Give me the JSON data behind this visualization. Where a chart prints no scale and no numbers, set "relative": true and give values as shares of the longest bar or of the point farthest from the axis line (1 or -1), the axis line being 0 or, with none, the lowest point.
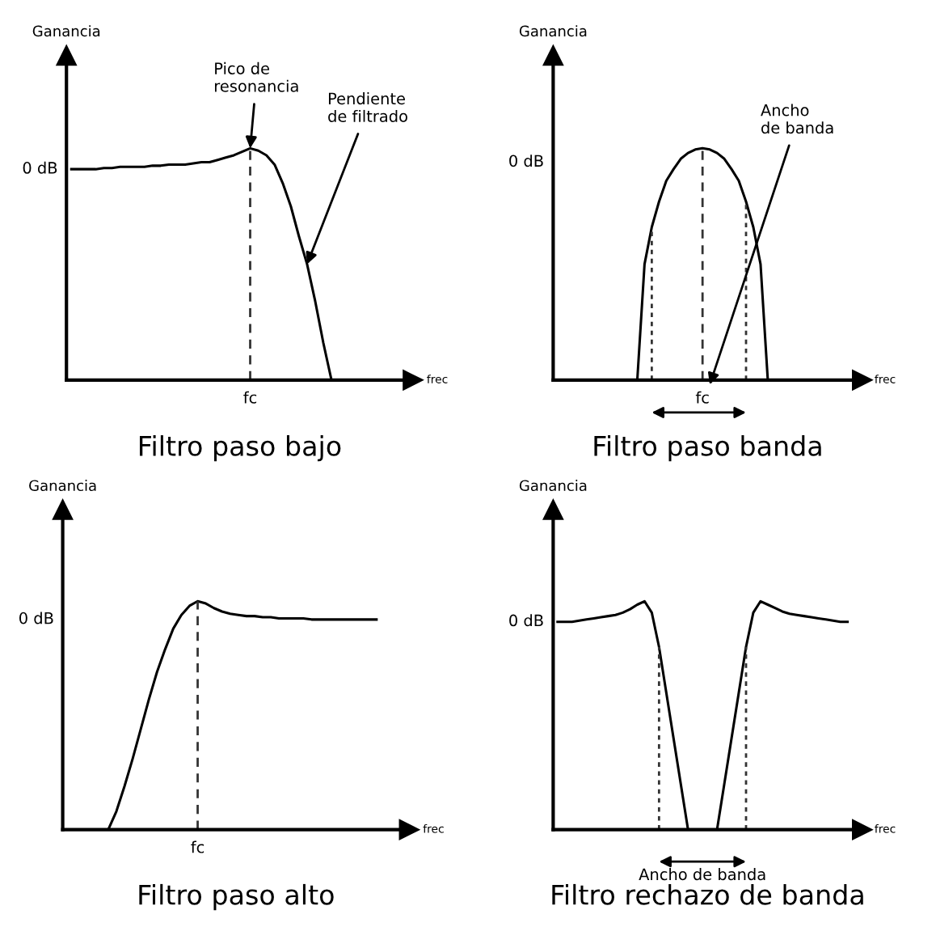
{
  "chart_data": [
    {
      "type": "line",
      "title": "Filtro paso bajo",
      "xlabel": "frec",
      "ylabel": "Ganancia",
      "relative": true,
      "categories": [
        null,
        null,
        null,
        null,
        null,
        null,
        null,
        null,
        null,
        null,
        null,
        null,
        null,
        null,
        null,
        null,
        null,
        null,
        null,
        null,
        null,
        null,
        null,
        null,
        null,
        null,
        null,
        null,
        null,
        null,
        null,
        null,
        null,
        null,
        null,
        null,
        null,
        null,
        null,
        null,
        null
      ],
      "series": [
        {
          "color": "#000000",
          "values": [
            0.91,
            0.91,
            0.91,
            0.91,
            0.915,
            0.915,
            0.92,
            0.92,
            0.92,
            0.92,
            0.925,
            0.925,
            0.93,
            0.93,
            0.93,
            0.935,
            0.94,
            0.94,
            0.95,
            0.96,
            0.97,
            0.985,
            1,
            0.99,
            0.97,
            0.93,
            0.85,
            0.75,
            0.62,
            0.5,
            0.34,
            0.16,
            0,
            0,
            0,
            0,
            0,
            0,
            0,
            0,
            0
          ]
        }
      ],
      "annotations": [
        "0 dB",
        "fc",
        "Pico de\nresonancia",
        "Pendiente\nde filtrado"
      ]
    },
    {
      "type": "line",
      "title": "Filtro paso banda",
      "xlabel": "frec",
      "ylabel": "Ganancia",
      "relative": true,
      "categories": [
        null,
        null,
        null,
        null,
        null,
        null,
        null,
        null,
        null,
        null,
        null,
        null,
        null,
        null,
        null,
        null,
        null,
        null,
        null,
        null,
        null,
        null,
        null,
        null,
        null,
        null,
        null,
        null,
        null,
        null,
        null,
        null,
        null,
        null,
        null,
        null,
        null,
        null,
        null,
        null,
        null
      ],
      "series": [
        {
          "color": "#000000",
          "values": [
            0,
            0,
            0,
            0,
            0,
            0,
            0,
            0,
            0,
            0,
            0,
            0,
            0.5,
            0.66,
            0.77,
            0.86,
            0.91,
            0.955,
            0.98,
            0.995,
            1,
            0.995,
            0.98,
            0.955,
            0.91,
            0.86,
            0.77,
            0.66,
            0.5,
            0,
            0,
            0,
            0,
            0,
            0,
            0,
            0,
            0,
            0,
            0,
            0
          ]
        }
      ],
      "annotations": [
        "0 dB",
        "fc",
        "Ancho\nde banda"
      ]
    },
    {
      "type": "line",
      "title": "Filtro paso alto",
      "xlabel": "frec",
      "ylabel": "Ganancia",
      "relative": true,
      "categories": [
        null,
        null,
        null,
        null,
        null,
        null,
        null,
        null,
        null,
        null,
        null,
        null,
        null,
        null,
        null,
        null,
        null,
        null,
        null,
        null,
        null,
        null,
        null,
        null,
        null,
        null,
        null,
        null,
        null,
        null,
        null,
        null,
        null,
        null,
        null,
        null,
        null,
        null,
        null
      ],
      "series": [
        {
          "color": "#000000",
          "values": [
            0,
            0,
            0,
            0,
            0,
            0,
            0.08,
            0.19,
            0.31,
            0.44,
            0.57,
            0.69,
            0.79,
            0.88,
            0.94,
            0.98,
            1,
            0.99,
            0.97,
            0.955,
            0.945,
            0.94,
            0.935,
            0.935,
            0.93,
            0.93,
            0.925,
            0.925,
            0.925,
            0.925,
            0.92,
            0.92,
            0.92,
            0.92,
            0.92,
            0.92,
            0.92,
            0.92,
            0.92
          ]
        }
      ],
      "annotations": [
        "0 dB",
        "fc"
      ]
    },
    {
      "type": "line",
      "title": "Filtro rechazo de banda",
      "xlabel": "frec",
      "ylabel": "Ganancia",
      "relative": true,
      "categories": [
        null,
        null,
        null,
        null,
        null,
        null,
        null,
        null,
        null,
        null,
        null,
        null,
        null,
        null,
        null,
        null,
        null,
        null,
        null,
        null,
        null,
        null,
        null,
        null,
        null,
        null,
        null,
        null,
        null,
        null,
        null,
        null,
        null,
        null,
        null,
        null,
        null,
        null,
        null,
        null,
        null
      ],
      "series": [
        {
          "color": "#000000",
          "values": [
            0.91,
            0.91,
            0.91,
            0.915,
            0.92,
            0.925,
            0.93,
            0.935,
            0.94,
            0.95,
            0.965,
            0.985,
            1,
            0.95,
            0.8,
            0.6,
            0.4,
            0.2,
            0,
            0,
            0,
            0,
            0,
            0.2,
            0.4,
            0.6,
            0.8,
            0.95,
            1,
            0.985,
            0.97,
            0.955,
            0.945,
            0.94,
            0.935,
            0.93,
            0.925,
            0.92,
            0.915,
            0.91,
            0.91
          ]
        }
      ],
      "annotations": [
        "0 dB",
        "Ancho de banda"
      ]
    }
  ]
}
